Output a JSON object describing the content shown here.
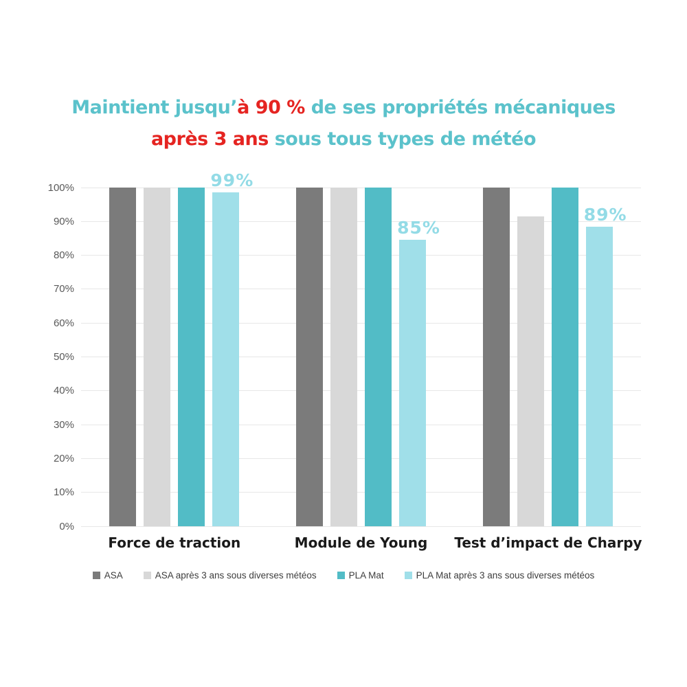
{
  "colors": {
    "teal": "#5bc2cb",
    "red": "#e52421",
    "axis_text": "#595959",
    "category_text": "#1a1a1a",
    "legend_text": "#3d3d3d",
    "gridline": "#e7e7e7"
  },
  "title": {
    "line1": {
      "seg1": "Maintient jusqu’",
      "seg2": "à 90 % ",
      "seg3": "de ses propriétés mécaniques"
    },
    "line2": {
      "seg1": "après 3 ans ",
      "seg2": "sous tous types de météo"
    }
  },
  "chart_data": {
    "type": "bar",
    "title": "Maintient jusqu’à 90 % de ses propriétés mécaniques après 3 ans sous tous types de météo",
    "categories": [
      "Force de traction",
      "Module de Young",
      "Test d’impact de Charpy"
    ],
    "series": [
      {
        "name": "ASA",
        "color": "#7b7b7b",
        "values": [
          100,
          100,
          100
        ],
        "data_labels": null
      },
      {
        "name": "ASA après 3 ans sous diverses météos",
        "color": "#d8d8d8",
        "values": [
          100,
          100,
          91.5
        ],
        "data_labels": null
      },
      {
        "name": "PLA Mat",
        "color": "#52bcc6",
        "values": [
          100,
          100,
          100
        ],
        "data_labels": null
      },
      {
        "name": "PLA Mat après 3 ans sous diverses météos",
        "color": "#a0dfe9",
        "label_color": "#93dbe6",
        "values": [
          98.5,
          84.5,
          88.5
        ],
        "data_labels": [
          "99%",
          "85%",
          "89%"
        ]
      }
    ],
    "y_ticks": [
      "100%",
      "90%",
      "80%",
      "70%",
      "60%",
      "50%",
      "40%",
      "30%",
      "20%",
      "10%",
      "0%"
    ],
    "ylim": [
      0,
      100
    ],
    "grid": true,
    "legend_position": "bottom"
  }
}
